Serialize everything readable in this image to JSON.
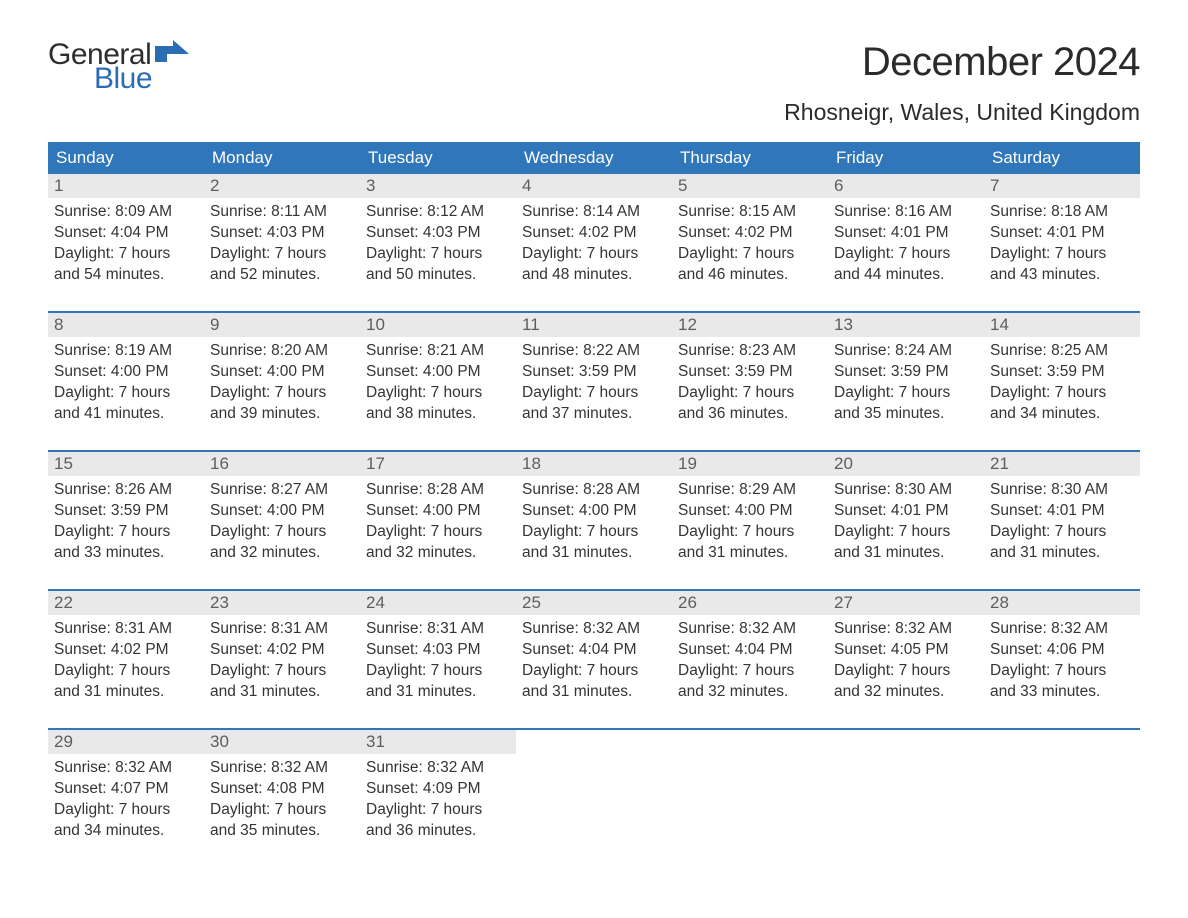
{
  "brand": {
    "word1": "General",
    "word2": "Blue",
    "flag_color": "#2a6db4"
  },
  "header": {
    "month_title": "December 2024",
    "location": "Rhosneigr, Wales, United Kingdom"
  },
  "colors": {
    "header_bg": "#2f76bb",
    "header_text": "#ffffff",
    "daynum_bg": "#e9e9e9",
    "daynum_text": "#5e5e5e",
    "body_text": "#343434",
    "rule": "#2f76bb",
    "page_bg": "#ffffff"
  },
  "typography": {
    "title_fontsize_pt": 30,
    "location_fontsize_pt": 17,
    "dayhead_fontsize_pt": 13,
    "body_fontsize_pt": 12
  },
  "calendar": {
    "type": "table",
    "day_headers": [
      "Sunday",
      "Monday",
      "Tuesday",
      "Wednesday",
      "Thursday",
      "Friday",
      "Saturday"
    ],
    "weeks": [
      [
        {
          "n": "1",
          "sunrise": "8:09 AM",
          "sunset": "4:04 PM",
          "dl1": "Daylight: 7 hours",
          "dl2": "and 54 minutes."
        },
        {
          "n": "2",
          "sunrise": "8:11 AM",
          "sunset": "4:03 PM",
          "dl1": "Daylight: 7 hours",
          "dl2": "and 52 minutes."
        },
        {
          "n": "3",
          "sunrise": "8:12 AM",
          "sunset": "4:03 PM",
          "dl1": "Daylight: 7 hours",
          "dl2": "and 50 minutes."
        },
        {
          "n": "4",
          "sunrise": "8:14 AM",
          "sunset": "4:02 PM",
          "dl1": "Daylight: 7 hours",
          "dl2": "and 48 minutes."
        },
        {
          "n": "5",
          "sunrise": "8:15 AM",
          "sunset": "4:02 PM",
          "dl1": "Daylight: 7 hours",
          "dl2": "and 46 minutes."
        },
        {
          "n": "6",
          "sunrise": "8:16 AM",
          "sunset": "4:01 PM",
          "dl1": "Daylight: 7 hours",
          "dl2": "and 44 minutes."
        },
        {
          "n": "7",
          "sunrise": "8:18 AM",
          "sunset": "4:01 PM",
          "dl1": "Daylight: 7 hours",
          "dl2": "and 43 minutes."
        }
      ],
      [
        {
          "n": "8",
          "sunrise": "8:19 AM",
          "sunset": "4:00 PM",
          "dl1": "Daylight: 7 hours",
          "dl2": "and 41 minutes."
        },
        {
          "n": "9",
          "sunrise": "8:20 AM",
          "sunset": "4:00 PM",
          "dl1": "Daylight: 7 hours",
          "dl2": "and 39 minutes."
        },
        {
          "n": "10",
          "sunrise": "8:21 AM",
          "sunset": "4:00 PM",
          "dl1": "Daylight: 7 hours",
          "dl2": "and 38 minutes."
        },
        {
          "n": "11",
          "sunrise": "8:22 AM",
          "sunset": "3:59 PM",
          "dl1": "Daylight: 7 hours",
          "dl2": "and 37 minutes."
        },
        {
          "n": "12",
          "sunrise": "8:23 AM",
          "sunset": "3:59 PM",
          "dl1": "Daylight: 7 hours",
          "dl2": "and 36 minutes."
        },
        {
          "n": "13",
          "sunrise": "8:24 AM",
          "sunset": "3:59 PM",
          "dl1": "Daylight: 7 hours",
          "dl2": "and 35 minutes."
        },
        {
          "n": "14",
          "sunrise": "8:25 AM",
          "sunset": "3:59 PM",
          "dl1": "Daylight: 7 hours",
          "dl2": "and 34 minutes."
        }
      ],
      [
        {
          "n": "15",
          "sunrise": "8:26 AM",
          "sunset": "3:59 PM",
          "dl1": "Daylight: 7 hours",
          "dl2": "and 33 minutes."
        },
        {
          "n": "16",
          "sunrise": "8:27 AM",
          "sunset": "4:00 PM",
          "dl1": "Daylight: 7 hours",
          "dl2": "and 32 minutes."
        },
        {
          "n": "17",
          "sunrise": "8:28 AM",
          "sunset": "4:00 PM",
          "dl1": "Daylight: 7 hours",
          "dl2": "and 32 minutes."
        },
        {
          "n": "18",
          "sunrise": "8:28 AM",
          "sunset": "4:00 PM",
          "dl1": "Daylight: 7 hours",
          "dl2": "and 31 minutes."
        },
        {
          "n": "19",
          "sunrise": "8:29 AM",
          "sunset": "4:00 PM",
          "dl1": "Daylight: 7 hours",
          "dl2": "and 31 minutes."
        },
        {
          "n": "20",
          "sunrise": "8:30 AM",
          "sunset": "4:01 PM",
          "dl1": "Daylight: 7 hours",
          "dl2": "and 31 minutes."
        },
        {
          "n": "21",
          "sunrise": "8:30 AM",
          "sunset": "4:01 PM",
          "dl1": "Daylight: 7 hours",
          "dl2": "and 31 minutes."
        }
      ],
      [
        {
          "n": "22",
          "sunrise": "8:31 AM",
          "sunset": "4:02 PM",
          "dl1": "Daylight: 7 hours",
          "dl2": "and 31 minutes."
        },
        {
          "n": "23",
          "sunrise": "8:31 AM",
          "sunset": "4:02 PM",
          "dl1": "Daylight: 7 hours",
          "dl2": "and 31 minutes."
        },
        {
          "n": "24",
          "sunrise": "8:31 AM",
          "sunset": "4:03 PM",
          "dl1": "Daylight: 7 hours",
          "dl2": "and 31 minutes."
        },
        {
          "n": "25",
          "sunrise": "8:32 AM",
          "sunset": "4:04 PM",
          "dl1": "Daylight: 7 hours",
          "dl2": "and 31 minutes."
        },
        {
          "n": "26",
          "sunrise": "8:32 AM",
          "sunset": "4:04 PM",
          "dl1": "Daylight: 7 hours",
          "dl2": "and 32 minutes."
        },
        {
          "n": "27",
          "sunrise": "8:32 AM",
          "sunset": "4:05 PM",
          "dl1": "Daylight: 7 hours",
          "dl2": "and 32 minutes."
        },
        {
          "n": "28",
          "sunrise": "8:32 AM",
          "sunset": "4:06 PM",
          "dl1": "Daylight: 7 hours",
          "dl2": "and 33 minutes."
        }
      ],
      [
        {
          "n": "29",
          "sunrise": "8:32 AM",
          "sunset": "4:07 PM",
          "dl1": "Daylight: 7 hours",
          "dl2": "and 34 minutes."
        },
        {
          "n": "30",
          "sunrise": "8:32 AM",
          "sunset": "4:08 PM",
          "dl1": "Daylight: 7 hours",
          "dl2": "and 35 minutes."
        },
        {
          "n": "31",
          "sunrise": "8:32 AM",
          "sunset": "4:09 PM",
          "dl1": "Daylight: 7 hours",
          "dl2": "and 36 minutes."
        },
        null,
        null,
        null,
        null
      ]
    ],
    "labels": {
      "sunrise_prefix": "Sunrise: ",
      "sunset_prefix": "Sunset: "
    }
  }
}
